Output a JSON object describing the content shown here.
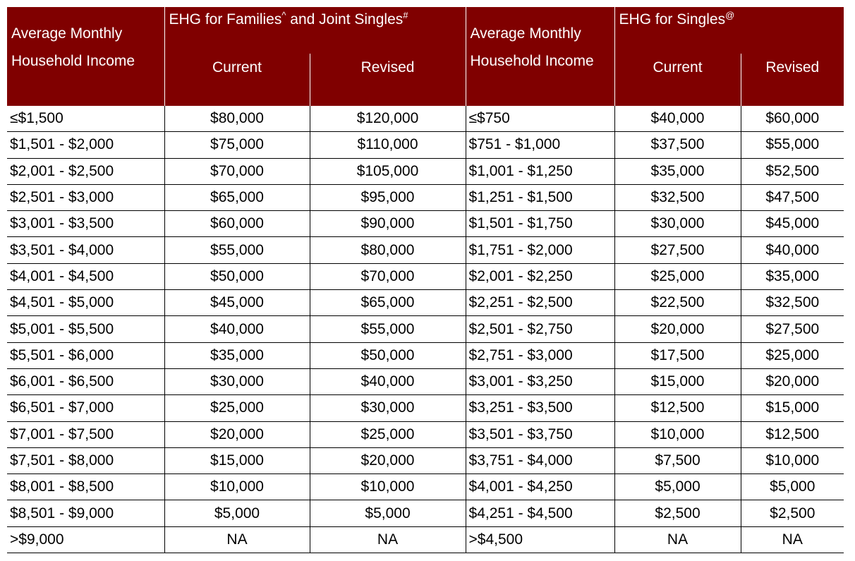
{
  "header": {
    "income_label": "Average Monthly Household Income",
    "families_group": "EHG for Families",
    "families_mark1": "^",
    "families_joint": " and Joint Singles",
    "families_mark2": "#",
    "singles_group": "EHG for Singles",
    "singles_mark": "@",
    "current": "Current",
    "revised": "Revised"
  },
  "colors": {
    "header_bg": "#800000",
    "header_text": "#ffffff"
  },
  "rows": [
    [
      "≤$1,500",
      "$80,000",
      "$120,000",
      "≤$750",
      "$40,000",
      "$60,000"
    ],
    [
      "$1,501 - $2,000",
      "$75,000",
      "$110,000",
      "$751 - $1,000",
      "$37,500",
      "$55,000"
    ],
    [
      "$2,001 - $2,500",
      "$70,000",
      "$105,000",
      "$1,001 - $1,250",
      "$35,000",
      "$52,500"
    ],
    [
      "$2,501 - $3,000",
      "$65,000",
      "$95,000",
      "$1,251 - $1,500",
      "$32,500",
      "$47,500"
    ],
    [
      "$3,001 - $3,500",
      "$60,000",
      "$90,000",
      "$1,501 - $1,750",
      "$30,000",
      "$45,000"
    ],
    [
      "$3,501 - $4,000",
      "$55,000",
      "$80,000",
      "$1,751 - $2,000",
      "$27,500",
      "$40,000"
    ],
    [
      "$4,001 - $4,500",
      "$50,000",
      "$70,000",
      "$2,001 - $2,250",
      "$25,000",
      "$35,000"
    ],
    [
      "$4,501 - $5,000",
      "$45,000",
      "$65,000",
      "$2,251 - $2,500",
      "$22,500",
      "$32,500"
    ],
    [
      "$5,001 - $5,500",
      "$40,000",
      "$55,000",
      "$2,501 - $2,750",
      "$20,000",
      "$27,500"
    ],
    [
      "$5,501 - $6,000",
      "$35,000",
      "$50,000",
      "$2,751 - $3,000",
      "$17,500",
      "$25,000"
    ],
    [
      "$6,001 - $6,500",
      "$30,000",
      "$40,000",
      "$3,001 - $3,250",
      "$15,000",
      "$20,000"
    ],
    [
      "$6,501 - $7,000",
      "$25,000",
      "$30,000",
      "$3,251 - $3,500",
      "$12,500",
      "$15,000"
    ],
    [
      "$7,001 - $7,500",
      "$20,000",
      "$25,000",
      "$3,501 - $3,750",
      "$10,000",
      "$12,500"
    ],
    [
      "$7,501 - $8,000",
      "$15,000",
      "$20,000",
      "$3,751 - $4,000",
      "$7,500",
      "$10,000"
    ],
    [
      "$8,001 - $8,500",
      "$10,000",
      "$10,000",
      "$4,001 - $4,250",
      "$5,000",
      "$5,000"
    ],
    [
      "$8,501 - $9,000",
      "$5,000",
      "$5,000",
      "$4,251 - $4,500",
      "$2,500",
      "$2,500"
    ],
    [
      ">$9,000",
      "NA",
      "NA",
      ">$4,500",
      "NA",
      "NA"
    ]
  ]
}
